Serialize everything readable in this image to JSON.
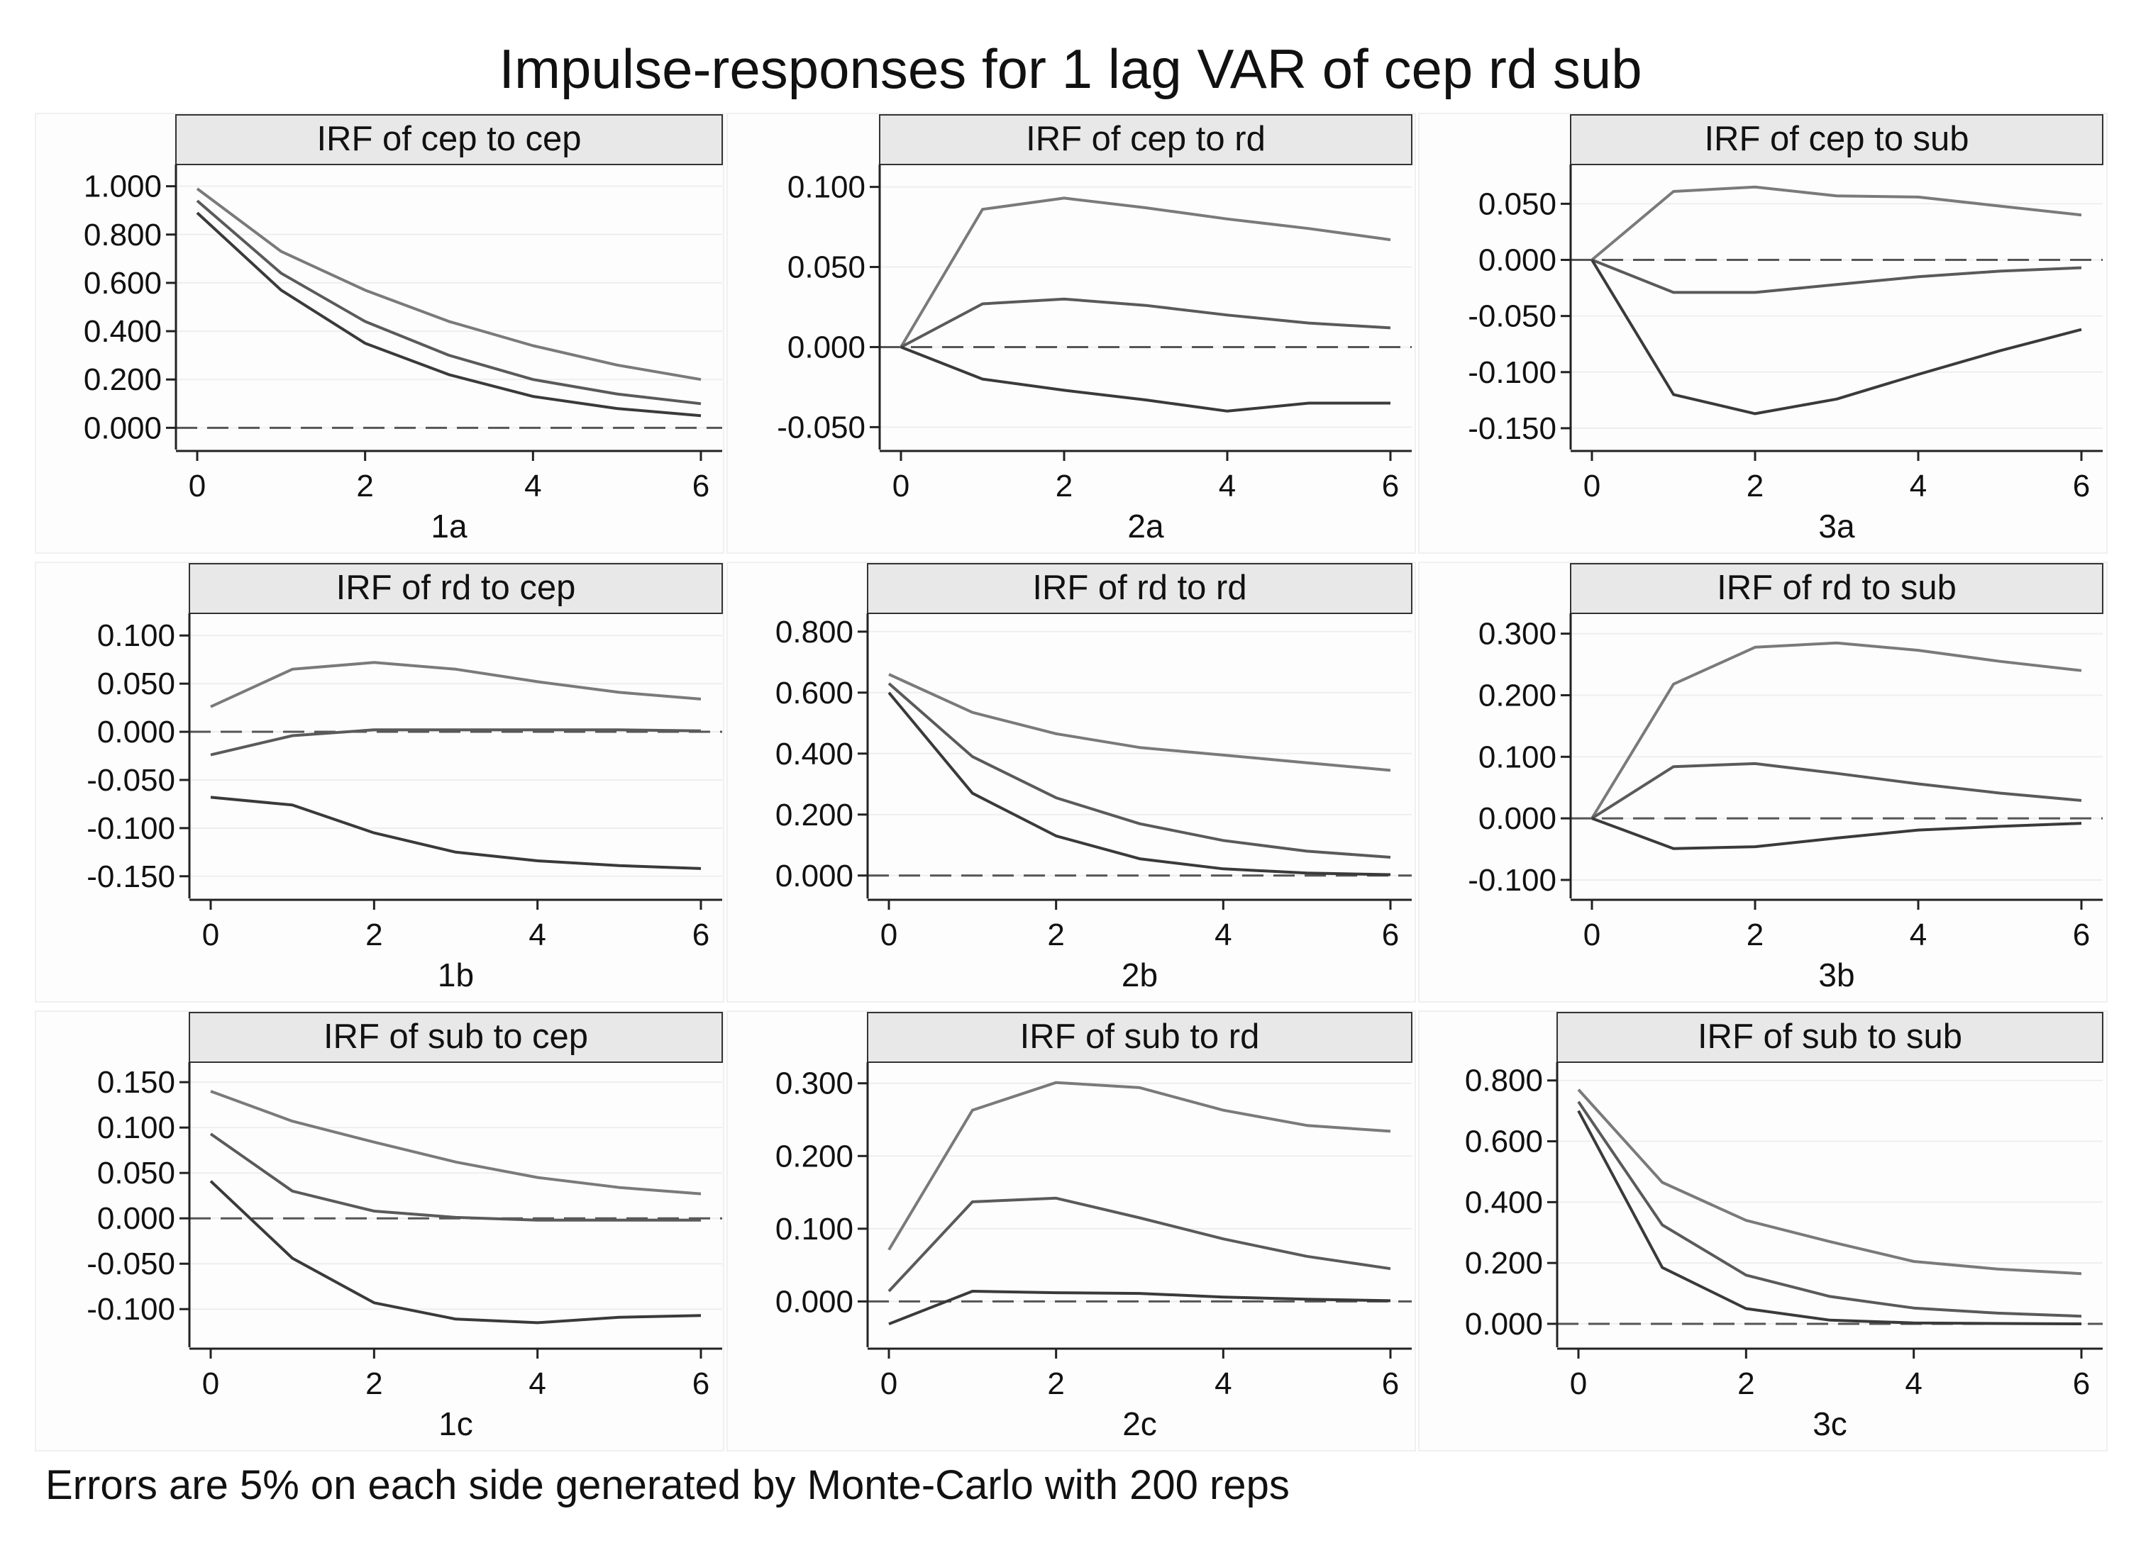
{
  "title": "Impulse-responses for 1 lag VAR of cep rd sub",
  "footnote": "Errors are 5% on each side generated by Monte-Carlo with 200 reps",
  "colors": {
    "upper": "#7a7a7a",
    "irf": "#5a5a5a",
    "lower": "#3a3a3a",
    "zero": "#555555",
    "strip": "#e8e8e8",
    "axis": "#222222"
  },
  "chart_data": [
    {
      "id": "1a",
      "type": "line",
      "title": "IRF of cep to cep",
      "xlabel": "1a",
      "x": [
        0,
        1,
        2,
        3,
        4,
        5,
        6
      ],
      "ylim": [
        -0.09,
        1.09
      ],
      "yticks": [
        0.0,
        0.2,
        0.4,
        0.6,
        0.8,
        1.0
      ],
      "yticklabels": [
        "0.000",
        "0.200",
        "0.400",
        "0.600",
        "0.800",
        "1.000"
      ],
      "xticks": [
        0,
        2,
        4,
        6
      ],
      "xticklabels": [
        "0",
        "2",
        "4",
        "6"
      ],
      "series": [
        {
          "values": [
            0.99,
            0.73,
            0.57,
            0.44,
            0.34,
            0.26,
            0.2
          ]
        },
        {
          "values": [
            0.94,
            0.64,
            0.44,
            0.3,
            0.2,
            0.14,
            0.1
          ]
        },
        {
          "values": [
            0.89,
            0.57,
            0.35,
            0.22,
            0.13,
            0.08,
            0.05
          ]
        }
      ]
    },
    {
      "id": "2a",
      "type": "line",
      "title": "IRF of cep to rd",
      "xlabel": "2a",
      "x": [
        0,
        1,
        2,
        3,
        4,
        5,
        6
      ],
      "ylim": [
        -0.064,
        0.114
      ],
      "yticks": [
        -0.05,
        0.0,
        0.05,
        0.1
      ],
      "yticklabels": [
        "-0.050",
        "0.000",
        "0.050",
        "0.100"
      ],
      "xticks": [
        0,
        2,
        4,
        6
      ],
      "xticklabels": [
        "0",
        "2",
        "4",
        "6"
      ],
      "series": [
        {
          "values": [
            0.0,
            0.086,
            0.093,
            0.087,
            0.08,
            0.074,
            0.067
          ]
        },
        {
          "values": [
            0.0,
            0.027,
            0.03,
            0.026,
            0.02,
            0.015,
            0.012
          ]
        },
        {
          "values": [
            0.0,
            -0.02,
            -0.027,
            -0.033,
            -0.04,
            -0.035,
            -0.035
          ]
        }
      ]
    },
    {
      "id": "3a",
      "type": "line",
      "title": "IRF of cep to sub",
      "xlabel": "3a",
      "x": [
        0,
        1,
        2,
        3,
        4,
        5,
        6
      ],
      "ylim": [
        -0.169,
        0.085
      ],
      "yticks": [
        -0.15,
        -0.1,
        -0.05,
        0.0,
        0.05
      ],
      "yticklabels": [
        "-0.150",
        "-0.100",
        "-0.050",
        "0.000",
        "0.050"
      ],
      "xticks": [
        0,
        2,
        4,
        6
      ],
      "xticklabels": [
        "0",
        "2",
        "4",
        "6"
      ],
      "series": [
        {
          "values": [
            0.0,
            0.061,
            0.065,
            0.057,
            0.056,
            0.048,
            0.04
          ]
        },
        {
          "values": [
            0.0,
            -0.029,
            -0.029,
            -0.022,
            -0.015,
            -0.01,
            -0.007
          ]
        },
        {
          "values": [
            0.0,
            -0.12,
            -0.137,
            -0.124,
            -0.102,
            -0.081,
            -0.062
          ]
        }
      ]
    },
    {
      "id": "1b",
      "type": "line",
      "title": "IRF of rd to cep",
      "xlabel": "1b",
      "x": [
        0,
        1,
        2,
        3,
        4,
        5,
        6
      ],
      "ylim": [
        -0.173,
        0.123
      ],
      "yticks": [
        -0.15,
        -0.1,
        -0.05,
        0.0,
        0.05,
        0.1
      ],
      "yticklabels": [
        "-0.150",
        "-0.100",
        "-0.050",
        "0.000",
        "0.050",
        "0.100"
      ],
      "xticks": [
        0,
        2,
        4,
        6
      ],
      "xticklabels": [
        "0",
        "2",
        "4",
        "6"
      ],
      "series": [
        {
          "values": [
            0.026,
            0.065,
            0.072,
            0.065,
            0.052,
            0.041,
            0.034
          ]
        },
        {
          "values": [
            -0.024,
            -0.004,
            0.002,
            0.002,
            0.002,
            0.002,
            0.001
          ]
        },
        {
          "values": [
            -0.068,
            -0.076,
            -0.105,
            -0.125,
            -0.134,
            -0.139,
            -0.142
          ]
        }
      ]
    },
    {
      "id": "2b",
      "type": "line",
      "title": "IRF of rd to rd",
      "xlabel": "2b",
      "x": [
        0,
        1,
        2,
        3,
        4,
        5,
        6
      ],
      "ylim": [
        -0.075,
        0.86
      ],
      "yticks": [
        0.0,
        0.2,
        0.4,
        0.6,
        0.8
      ],
      "yticklabels": [
        "0.000",
        "0.200",
        "0.400",
        "0.600",
        "0.800"
      ],
      "xticks": [
        0,
        2,
        4,
        6
      ],
      "xticklabels": [
        "0",
        "2",
        "4",
        "6"
      ],
      "series": [
        {
          "values": [
            0.66,
            0.535,
            0.465,
            0.42,
            0.395,
            0.37,
            0.345
          ]
        },
        {
          "values": [
            0.63,
            0.39,
            0.255,
            0.17,
            0.115,
            0.08,
            0.06
          ]
        },
        {
          "values": [
            0.6,
            0.27,
            0.13,
            0.055,
            0.022,
            0.008,
            0.003
          ]
        }
      ]
    },
    {
      "id": "3b",
      "type": "line",
      "title": "IRF of rd to sub",
      "xlabel": "3b",
      "x": [
        0,
        1,
        2,
        3,
        4,
        5,
        6
      ],
      "ylim": [
        -0.13,
        0.333
      ],
      "yticks": [
        -0.1,
        0.0,
        0.1,
        0.2,
        0.3
      ],
      "yticklabels": [
        "-0.100",
        "0.000",
        "0.100",
        "0.200",
        "0.300"
      ],
      "xticks": [
        0,
        2,
        4,
        6
      ],
      "xticklabels": [
        "0",
        "2",
        "4",
        "6"
      ],
      "series": [
        {
          "values": [
            0.0,
            0.218,
            0.278,
            0.285,
            0.273,
            0.255,
            0.24
          ]
        },
        {
          "values": [
            0.0,
            0.084,
            0.089,
            0.073,
            0.056,
            0.041,
            0.029
          ]
        },
        {
          "values": [
            0.0,
            -0.049,
            -0.046,
            -0.032,
            -0.019,
            -0.013,
            -0.008
          ]
        }
      ]
    },
    {
      "id": "1c",
      "type": "line",
      "title": "IRF of sub to cep",
      "xlabel": "1c",
      "x": [
        0,
        1,
        2,
        3,
        4,
        5,
        6
      ],
      "ylim": [
        -0.142,
        0.172
      ],
      "yticks": [
        -0.1,
        -0.05,
        0.0,
        0.05,
        0.1,
        0.15
      ],
      "yticklabels": [
        "-0.100",
        "-0.050",
        "0.000",
        "0.050",
        "0.100",
        "0.150"
      ],
      "xticks": [
        0,
        2,
        4,
        6
      ],
      "xticklabels": [
        "0",
        "2",
        "4",
        "6"
      ],
      "series": [
        {
          "values": [
            0.14,
            0.107,
            0.084,
            0.062,
            0.045,
            0.034,
            0.027
          ]
        },
        {
          "values": [
            0.093,
            0.03,
            0.008,
            0.001,
            -0.002,
            -0.002,
            -0.002
          ]
        },
        {
          "values": [
            0.041,
            -0.044,
            -0.093,
            -0.111,
            -0.115,
            -0.109,
            -0.107
          ]
        }
      ]
    },
    {
      "id": "2c",
      "type": "line",
      "title": "IRF of sub to rd",
      "xlabel": "2c",
      "x": [
        0,
        1,
        2,
        3,
        4,
        5,
        6
      ],
      "ylim": [
        -0.063,
        0.329
      ],
      "yticks": [
        0.0,
        0.1,
        0.2,
        0.3
      ],
      "yticklabels": [
        "0.000",
        "0.100",
        "0.200",
        "0.300"
      ],
      "xticks": [
        0,
        2,
        4,
        6
      ],
      "xticklabels": [
        "0",
        "2",
        "4",
        "6"
      ],
      "series": [
        {
          "values": [
            0.071,
            0.263,
            0.301,
            0.294,
            0.263,
            0.242,
            0.234
          ]
        },
        {
          "values": [
            0.014,
            0.137,
            0.142,
            0.115,
            0.086,
            0.062,
            0.045
          ]
        },
        {
          "values": [
            -0.031,
            0.014,
            0.012,
            0.011,
            0.006,
            0.003,
            0.001
          ]
        }
      ]
    },
    {
      "id": "3c",
      "type": "line",
      "title": "IRF of sub to sub",
      "xlabel": "3c",
      "x": [
        0,
        1,
        2,
        3,
        4,
        5,
        6
      ],
      "ylim": [
        -0.077,
        0.86
      ],
      "yticks": [
        0.0,
        0.2,
        0.4,
        0.6,
        0.8
      ],
      "yticklabels": [
        "0.000",
        "0.200",
        "0.400",
        "0.600",
        "0.800"
      ],
      "xticks": [
        0,
        2,
        4,
        6
      ],
      "xticklabels": [
        "0",
        "2",
        "4",
        "6"
      ],
      "series": [
        {
          "values": [
            0.77,
            0.465,
            0.34,
            0.27,
            0.205,
            0.18,
            0.165
          ]
        },
        {
          "values": [
            0.73,
            0.325,
            0.16,
            0.09,
            0.052,
            0.035,
            0.025
          ]
        },
        {
          "values": [
            0.7,
            0.185,
            0.05,
            0.012,
            0.003,
            0.001,
            0.0
          ]
        }
      ]
    }
  ]
}
